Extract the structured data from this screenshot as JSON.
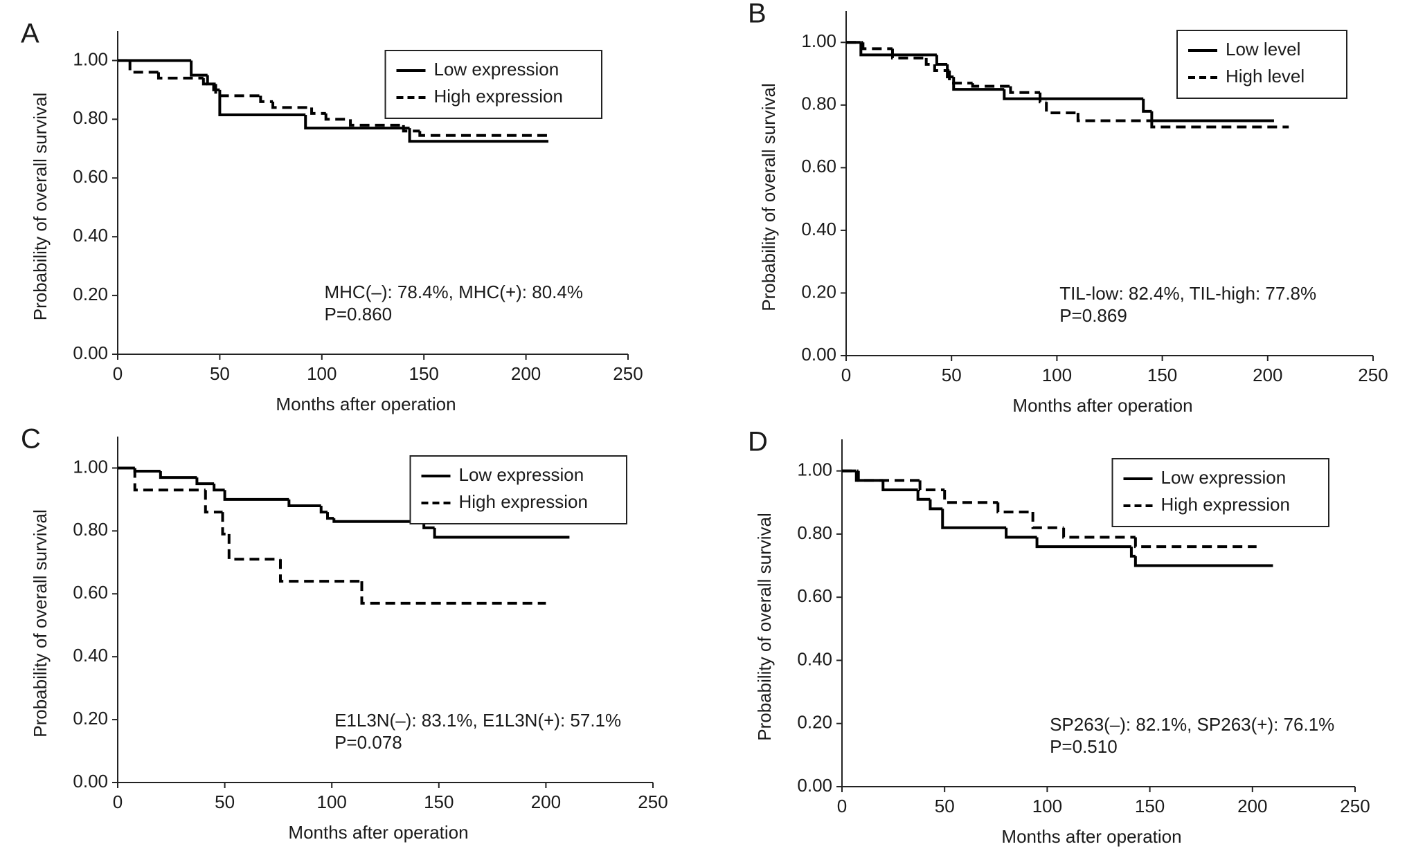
{
  "chart_data": [
    {
      "type": "step",
      "label": "A",
      "xlabel": "Months after operation",
      "ylabel": "Probability of overall survival",
      "annotations": [
        "MHC(–): 78.4%, MHC(+): 80.4%",
        "P=0.860"
      ],
      "xlim": [
        0,
        250
      ],
      "ylim": [
        0,
        1.1
      ],
      "xticks": [
        0,
        50,
        100,
        150,
        200,
        250
      ],
      "yticks": [
        {
          "value": 0,
          "label": "0.00"
        },
        {
          "value": 0.2,
          "label": "0.20"
        },
        {
          "value": 0.4,
          "label": "0.40"
        },
        {
          "value": 0.6,
          "label": "0.60"
        },
        {
          "value": 0.8,
          "label": "0.80"
        },
        {
          "value": 1,
          "label": "1.00"
        }
      ],
      "legend": "upper right",
      "series": [
        {
          "name": "Low expression",
          "color": "#000000",
          "line_style": "solid",
          "x": [
            0,
            36,
            44,
            47,
            50,
            92,
            143,
            211
          ],
          "values": [
            1,
            0.95,
            0.92,
            0.9,
            0.815,
            0.77,
            0.725,
            0.725
          ]
        },
        {
          "name": "High expression",
          "color": "#000000",
          "line_style": "dashed",
          "x": [
            0,
            6,
            20,
            42,
            48,
            70,
            76,
            95,
            102,
            114,
            140,
            148,
            212
          ],
          "values": [
            1,
            0.96,
            0.94,
            0.92,
            0.88,
            0.86,
            0.84,
            0.82,
            0.8,
            0.78,
            0.76,
            0.745,
            0.745
          ]
        }
      ]
    },
    {
      "type": "step",
      "label": "B",
      "xlabel": "Months after operation",
      "ylabel": "Probability of overall survival",
      "annotations": [
        "TIL-low: 82.4%, TIL-high: 77.8%",
        "P=0.869"
      ],
      "xlim": [
        0,
        250
      ],
      "ylim": [
        0,
        1.1
      ],
      "xticks": [
        0,
        50,
        100,
        150,
        200,
        250
      ],
      "yticks": [
        {
          "value": 0,
          "label": "0.00"
        },
        {
          "value": 0.2,
          "label": "0.20"
        },
        {
          "value": 0.4,
          "label": "0.40"
        },
        {
          "value": 0.6,
          "label": "0.60"
        },
        {
          "value": 0.8,
          "label": "0.80"
        },
        {
          "value": 1,
          "label": "1.00"
        }
      ],
      "legend": "upper right",
      "series": [
        {
          "name": "Low level",
          "color": "#000000",
          "line_style": "solid",
          "x": [
            0,
            7,
            43,
            48,
            51,
            75,
            141,
            145,
            203
          ],
          "values": [
            1,
            0.96,
            0.93,
            0.89,
            0.85,
            0.82,
            0.78,
            0.75,
            0.75
          ]
        },
        {
          "name": "High level",
          "color": "#000000",
          "line_style": "dashed",
          "x": [
            0,
            8,
            22,
            38,
            42,
            49,
            60,
            78,
            92,
            95,
            110,
            145,
            210
          ],
          "values": [
            1,
            0.98,
            0.95,
            0.93,
            0.91,
            0.87,
            0.86,
            0.84,
            0.81,
            0.775,
            0.75,
            0.73,
            0.73
          ]
        }
      ]
    },
    {
      "type": "step",
      "label": "C",
      "xlabel": "Months after operation",
      "ylabel": "Probability of overall survival",
      "annotations": [
        "E1L3N(–): 83.1%, E1L3N(+): 57.1%",
        "P=0.078"
      ],
      "xlim": [
        0,
        250
      ],
      "ylim": [
        0,
        1.1
      ],
      "xticks": [
        0,
        50,
        100,
        150,
        200,
        250
      ],
      "yticks": [
        {
          "value": 0,
          "label": "0.00"
        },
        {
          "value": 0.2,
          "label": "0.20"
        },
        {
          "value": 0.4,
          "label": "0.40"
        },
        {
          "value": 0.6,
          "label": "0.60"
        },
        {
          "value": 0.8,
          "label": "0.80"
        },
        {
          "value": 1,
          "label": "1.00"
        }
      ],
      "legend": "upper right",
      "series": [
        {
          "name": "Low expression",
          "color": "#000000",
          "line_style": "solid",
          "x": [
            0,
            8,
            20,
            37,
            45,
            50,
            80,
            95,
            98,
            101,
            143,
            148,
            211
          ],
          "values": [
            1,
            0.99,
            0.97,
            0.95,
            0.93,
            0.9,
            0.88,
            0.86,
            0.84,
            0.83,
            0.81,
            0.78,
            0.78
          ]
        },
        {
          "name": "High expression",
          "color": "#000000",
          "line_style": "dashed",
          "x": [
            0,
            8,
            41,
            49,
            52,
            76,
            114,
            200
          ],
          "values": [
            1,
            0.93,
            0.86,
            0.79,
            0.71,
            0.64,
            0.57,
            0.57
          ]
        }
      ]
    },
    {
      "type": "step",
      "label": "D",
      "xlabel": "Months after operation",
      "ylabel": "Probability of overall survival",
      "annotations": [
        "SP263(–): 82.1%, SP263(+): 76.1%",
        "P=0.510"
      ],
      "xlim": [
        0,
        250
      ],
      "ylim": [
        0,
        1.1
      ],
      "xticks": [
        0,
        50,
        100,
        150,
        200,
        250
      ],
      "yticks": [
        {
          "value": 0,
          "label": "0.00"
        },
        {
          "value": 0.2,
          "label": "0.20"
        },
        {
          "value": 0.4,
          "label": "0.40"
        },
        {
          "value": 0.6,
          "label": "0.60"
        },
        {
          "value": 0.8,
          "label": "0.80"
        },
        {
          "value": 1,
          "label": "1.00"
        }
      ],
      "legend": "upper right",
      "series": [
        {
          "name": "Low expression",
          "color": "#000000",
          "line_style": "solid",
          "x": [
            0,
            7,
            20,
            37,
            43,
            49,
            80,
            95,
            141,
            143,
            210
          ],
          "values": [
            1,
            0.97,
            0.94,
            0.91,
            0.88,
            0.82,
            0.79,
            0.76,
            0.73,
            0.7,
            0.7
          ]
        },
        {
          "name": "High expression",
          "color": "#000000",
          "line_style": "dashed",
          "x": [
            0,
            8,
            38,
            50,
            76,
            93,
            108,
            143,
            202
          ],
          "values": [
            1,
            0.97,
            0.94,
            0.9,
            0.87,
            0.82,
            0.79,
            0.76,
            0.76
          ]
        }
      ]
    }
  ]
}
